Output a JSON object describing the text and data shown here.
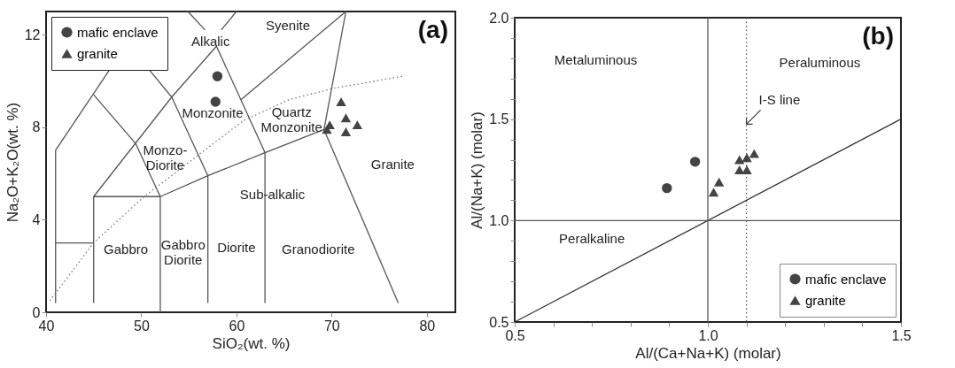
{
  "chart_data": [
    {
      "type": "scatter",
      "xlabel": "SiO₂(wt. %)",
      "ylabel": "Na₂O+K₂O(wt. %)",
      "xlim": [
        40,
        83
      ],
      "ylim": [
        0,
        13
      ],
      "xticks": [
        40,
        50,
        60,
        70,
        80
      ],
      "yticks": [
        0,
        4,
        8,
        12
      ],
      "grid": false,
      "legend": "top left",
      "series": [
        {
          "type": "line",
          "color": "#555555",
          "x": [
            41,
            41,
            46.7
          ],
          "values": [
            0.4,
            7,
            10.5
          ]
        },
        {
          "type": "line",
          "color": "#555555",
          "x": [
            41,
            45
          ],
          "values": [
            3,
            3
          ]
        },
        {
          "type": "line",
          "color": "#555555",
          "x": [
            45,
            45,
            52,
            57,
            63,
            69.2
          ],
          "values": [
            0.4,
            5,
            5,
            5.9,
            6.9,
            7.9
          ]
        },
        {
          "type": "line",
          "color": "#555555",
          "x": [
            45,
            49.4,
            52,
            52
          ],
          "values": [
            9.4,
            7.3,
            5,
            0
          ]
        },
        {
          "type": "line",
          "color": "#555555",
          "x": [
            50.8,
            53.2,
            57,
            57
          ],
          "values": [
            10.5,
            9.3,
            5.9,
            0.4
          ]
        },
        {
          "type": "line",
          "color": "#555555",
          "x": [
            45,
            53.2,
            57.9,
            63,
            63
          ],
          "values": [
            5,
            9.3,
            11.5,
            6.9,
            0.4
          ]
        },
        {
          "type": "line",
          "color": "#555555",
          "x": [
            54.9,
            56.7
          ],
          "values": [
            13,
            12.2
          ]
        },
        {
          "type": "line",
          "color": "#555555",
          "x": [
            60,
            58.4
          ],
          "values": [
            13,
            12.2
          ]
        },
        {
          "type": "line",
          "color": "#555555",
          "x": [
            60.5,
            71.5
          ],
          "values": [
            9.2,
            13
          ]
        },
        {
          "type": "line",
          "color": "#555555",
          "x": [
            71.5,
            69.2,
            77
          ],
          "values": [
            13,
            7.9,
            0.4
          ]
        },
        {
          "type": "line",
          "color": "#777777",
          "line_style": "dotted",
          "x": [
            40.4,
            45,
            50.3,
            56,
            60.8,
            65.6,
            70.4,
            77.5
          ],
          "values": [
            0.5,
            3,
            5,
            6.8,
            8.3,
            9.2,
            9.7,
            10.2
          ]
        },
        {
          "name": "mafic enclave",
          "color": "#444444",
          "marker": "circle",
          "x": [
            58.0,
            57.8
          ],
          "values": [
            10.2,
            9.1
          ]
        },
        {
          "name": "granite",
          "color": "#444444",
          "marker": "triangle",
          "x": [
            71.0,
            71.5,
            72.7,
            69.8,
            69.5,
            71.5
          ],
          "values": [
            9.1,
            8.4,
            8.1,
            8.1,
            7.9,
            7.8
          ]
        }
      ],
      "annotations": [
        "Syenite",
        "Alkalic",
        "Monzonite",
        "Quartz\nMonzonite",
        "Monzo-\nDiorite",
        "Granite",
        "Sub-alkalic",
        "Gabbro",
        "Gabbro\nDiorite",
        "Diorite",
        "Granodiorite",
        "(a)"
      ]
    },
    {
      "type": "scatter",
      "xlabel": "Al/(Ca+Na+K) (molar)",
      "ylabel": "Al/(Na+K) (molar)",
      "xlim": [
        0.5,
        1.5
      ],
      "ylim": [
        0.5,
        2.0
      ],
      "xticks": [
        0.5,
        {
          "value": 0.6,
          "label": null
        },
        {
          "value": 0.7,
          "label": null
        },
        {
          "value": 0.8,
          "label": null
        },
        {
          "value": 0.9,
          "label": null
        },
        {
          "value": 1.0,
          "label": "1.0"
        },
        {
          "value": 1.1,
          "label": null
        },
        {
          "value": 1.2,
          "label": null
        },
        {
          "value": 1.3,
          "label": null
        },
        {
          "value": 1.4,
          "label": null
        },
        1.5
      ],
      "yticks": [
        0.5,
        {
          "value": 0.6,
          "label": null
        },
        {
          "value": 0.7,
          "label": null
        },
        {
          "value": 0.8,
          "label": null
        },
        {
          "value": 0.9,
          "label": null
        },
        {
          "value": 1.0,
          "label": "1.0"
        },
        {
          "value": 1.1,
          "label": null
        },
        {
          "value": 1.2,
          "label": null
        },
        {
          "value": 1.3,
          "label": null
        },
        {
          "value": 1.4,
          "label": null
        },
        1.5,
        {
          "value": 1.6,
          "label": null
        },
        {
          "value": 1.7,
          "label": null
        },
        {
          "value": 1.8,
          "label": null
        },
        {
          "value": 1.9,
          "label": null
        },
        {
          "value": 2.0,
          "label": "2.0"
        }
      ],
      "grid": false,
      "legend": "bottom right",
      "series": [
        {
          "type": "line",
          "color": "#333333",
          "x": [
            0.5,
            1.5
          ],
          "values": [
            0.5,
            1.5
          ]
        },
        {
          "name": "mafic enclave",
          "color": "#444444",
          "marker": "circle",
          "x": [
            0.894,
            0.967
          ],
          "values": [
            1.16,
            1.29
          ]
        },
        {
          "name": "granite",
          "color": "#444444",
          "marker": "triangle",
          "x": [
            1.015,
            1.029,
            1.082,
            1.082,
            1.101,
            1.101,
            1.12
          ],
          "values": [
            1.14,
            1.19,
            1.25,
            1.3,
            1.25,
            1.31,
            1.33
          ]
        }
      ],
      "ref_lines": [
        {
          "axis": "x",
          "value": 1.0,
          "color": "#555555"
        },
        {
          "axis": "y",
          "value": 1.0,
          "color": "#555555"
        },
        {
          "axis": "x",
          "value": 1.1,
          "color": "#555555",
          "line_style": "dotted",
          "label": "I-S line"
        }
      ],
      "annotations": [
        "Metaluminous",
        "Peraluminous",
        "Peralkaline",
        "(b)"
      ]
    }
  ]
}
